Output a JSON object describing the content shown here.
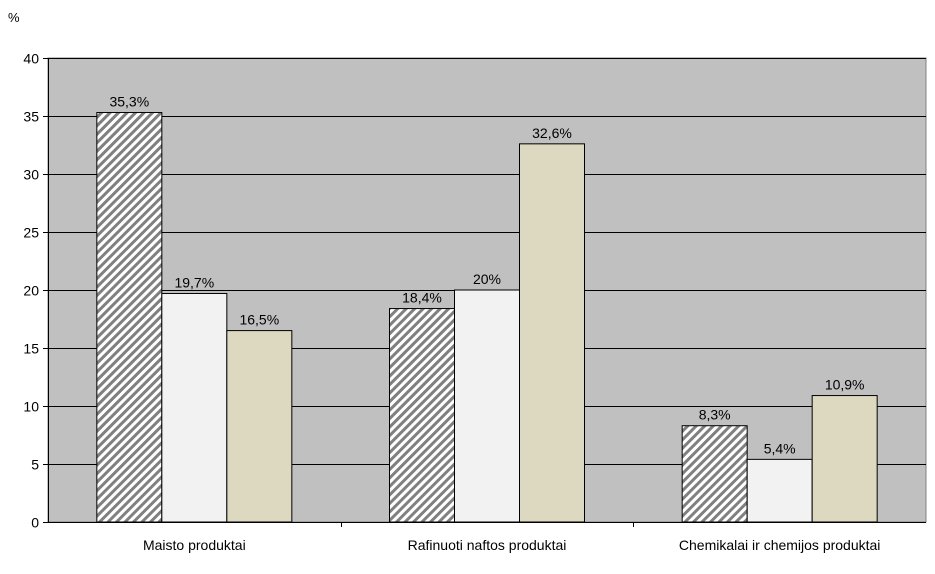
{
  "chart_data": {
    "type": "bar",
    "unit_label": "%",
    "categories": [
      "Maisto produktai",
      "Rafinuoti naftos produktai",
      "Chemikalai ir chemijos produktai"
    ],
    "series": [
      {
        "values": [
          35.3,
          18.4,
          8.3
        ],
        "labels": [
          "35,3%",
          "18,4%",
          "8,3%"
        ],
        "pattern": "diagonal-hatch"
      },
      {
        "values": [
          19.7,
          20,
          5.4
        ],
        "labels": [
          "19,7%",
          "20%",
          "5,4%"
        ],
        "color": "#f2f2f2"
      },
      {
        "values": [
          16.5,
          32.6,
          10.9
        ],
        "labels": [
          "16,5%",
          "32,6%",
          "10,9%"
        ],
        "color": "#ddd8c0"
      }
    ],
    "yticks": [
      "0",
      "5",
      "10",
      "15",
      "20",
      "25",
      "30",
      "35",
      "40"
    ],
    "ylim": [
      0,
      40
    ],
    "grid": true,
    "legend": "none",
    "plot_background": "#c0c0c0"
  }
}
